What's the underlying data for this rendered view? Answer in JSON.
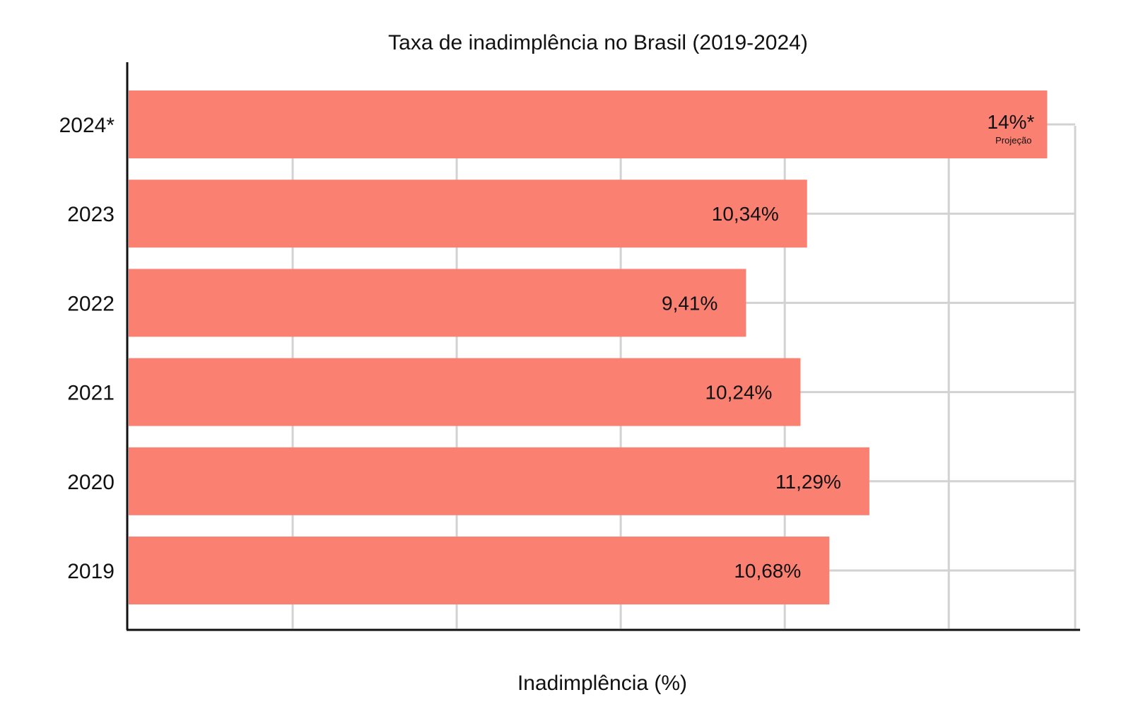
{
  "chart_data": {
    "type": "bar",
    "orientation": "horizontal",
    "title": "Taxa de inadimplência no Brasil (2019-2024)",
    "xlabel": "Inadimplência (%)",
    "ylabel": "",
    "xlim": [
      0,
      14.2
    ],
    "grid": true,
    "bar_color": "#FA8072",
    "categories": [
      "2024*",
      "2023",
      "2022",
      "2021",
      "2020",
      "2019"
    ],
    "values": [
      14,
      10.34,
      9.41,
      10.24,
      11.29,
      10.68
    ],
    "data_labels": [
      "14%*",
      "10,34%",
      "9,41%",
      "10,24%",
      "11,29%",
      "10,68%"
    ],
    "annotations": [
      {
        "category": "2024*",
        "text": "Projeção"
      }
    ]
  }
}
